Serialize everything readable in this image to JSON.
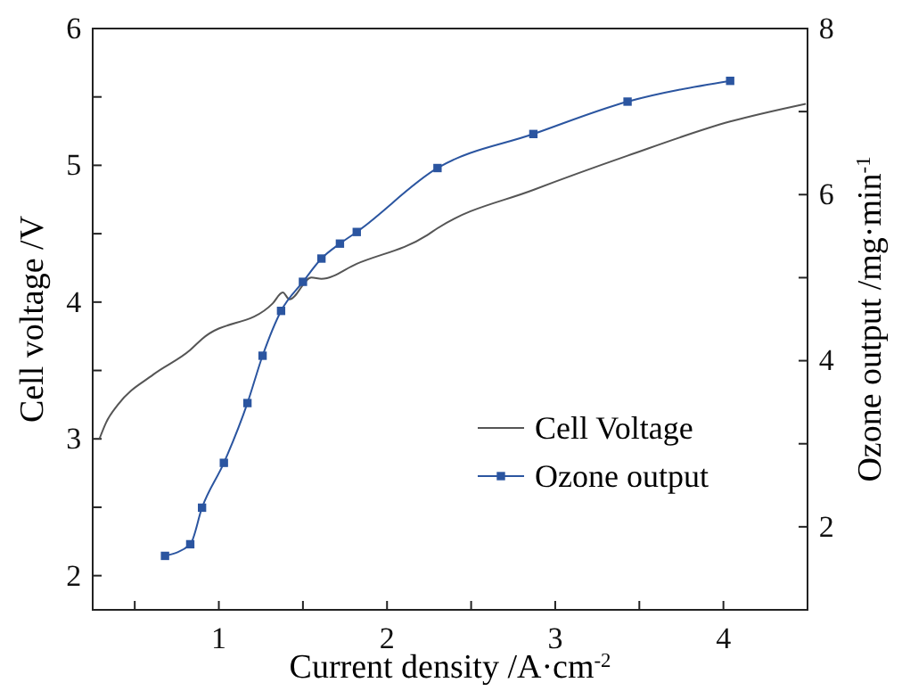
{
  "chart_data": {
    "type": "line",
    "xlabel": "Current density  /A·cm$^{-2}$",
    "ylabel": "Cell voltage  /V",
    "y2label": "Ozone output  /mg·min$^{-1}$",
    "xlim": [
      0.25,
      4.5
    ],
    "xticks": [
      {
        "value": 0.5,
        "label": null
      },
      1,
      {
        "value": 1.5,
        "label": null
      },
      2,
      {
        "value": 2.5,
        "label": null
      },
      3,
      {
        "value": 3.5,
        "label": null
      },
      4
    ],
    "ylim": [
      1.75,
      6
    ],
    "yticks": [
      2,
      {
        "value": 2.5,
        "label": null
      },
      3,
      {
        "value": 3.5,
        "label": null
      },
      4,
      {
        "value": 4.5,
        "label": null
      },
      5,
      {
        "value": 5.5,
        "label": null
      },
      6
    ],
    "y2lim": [
      1,
      8
    ],
    "y2ticks": [
      2,
      {
        "value": 3,
        "label": null
      },
      4,
      {
        "value": 5,
        "label": null
      },
      6,
      {
        "value": 7,
        "label": null
      },
      8
    ],
    "legend": "right",
    "grid": false,
    "series": [
      {
        "name": "Cell Voltage",
        "color": "#555555",
        "marker": "none",
        "x": [
          0.29,
          0.33,
          0.4,
          0.61,
          0.83,
          0.9,
          1.32,
          1.38,
          1.42,
          1.55,
          1.61,
          1.82,
          2.24,
          2.3,
          2.87,
          3.43,
          4.04,
          4.49
        ],
        "values": [
          3.0,
          3.12,
          3.25,
          3.47,
          3.65,
          3.73,
          3.99,
          4.07,
          4.02,
          4.18,
          4.17,
          4.28,
          4.49,
          4.54,
          4.82,
          5.07,
          5.32,
          5.45
        ]
      },
      {
        "name": "Ozone output",
        "color": "#2b55a0",
        "marker": "square",
        "axis": "y2",
        "x": [
          0.68,
          0.83,
          0.9,
          1.03,
          1.17,
          1.26,
          1.37,
          1.5,
          1.61,
          1.72,
          1.82,
          2.3,
          2.87,
          3.43,
          4.04
        ],
        "values": [
          1.65,
          1.79,
          2.23,
          2.77,
          3.49,
          4.06,
          4.6,
          4.95,
          5.23,
          5.41,
          5.55,
          6.32,
          6.73,
          7.12,
          7.37
        ]
      }
    ]
  }
}
